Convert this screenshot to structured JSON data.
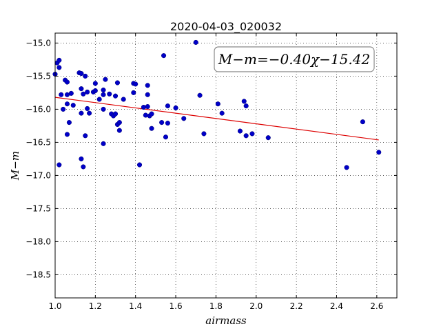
{
  "chart_data": {
    "type": "scatter",
    "title": "2020-04-03_020032",
    "xlabel": "airmass",
    "ylabel": "M−m",
    "xlim": [
      1.0,
      2.7
    ],
    "ylim": [
      -18.85,
      -14.85
    ],
    "y_inverted": true,
    "grid": true,
    "x_ticks": [
      "1.0",
      "1.2",
      "1.4",
      "1.6",
      "1.8",
      "2.0",
      "2.2",
      "2.4",
      "2.6"
    ],
    "y_ticks": [
      "−15.0",
      "−15.5",
      "−16.0",
      "−16.5",
      "−17.0",
      "−17.5",
      "−18.0",
      "−18.5"
    ],
    "x_tick_values": [
      1.0,
      1.2,
      1.4,
      1.6,
      1.8,
      2.0,
      2.2,
      2.4,
      2.6
    ],
    "y_tick_values": [
      -15.0,
      -15.5,
      -16.0,
      -16.5,
      -17.0,
      -17.5,
      -18.0,
      -18.5
    ],
    "annotation": "M−m=−0.40χ−15.42",
    "colors": {
      "points": "#0000c8",
      "fit": "#dd0000"
    },
    "fit": {
      "slope": -0.4,
      "intercept": -15.42,
      "x_range": [
        1.0,
        2.61
      ]
    },
    "points": [
      {
        "x": 1.0,
        "y": -15.47
      },
      {
        "x": 1.01,
        "y": -15.3
      },
      {
        "x": 1.02,
        "y": -15.26
      },
      {
        "x": 1.02,
        "y": -15.37
      },
      {
        "x": 1.02,
        "y": -16.84
      },
      {
        "x": 1.03,
        "y": -15.78
      },
      {
        "x": 1.04,
        "y": -16.0
      },
      {
        "x": 1.05,
        "y": -15.56
      },
      {
        "x": 1.06,
        "y": -15.59
      },
      {
        "x": 1.06,
        "y": -15.78
      },
      {
        "x": 1.06,
        "y": -15.92
      },
      {
        "x": 1.06,
        "y": -16.38
      },
      {
        "x": 1.07,
        "y": -16.2
      },
      {
        "x": 1.08,
        "y": -15.76
      },
      {
        "x": 1.09,
        "y": -15.94
      },
      {
        "x": 1.12,
        "y": -15.45
      },
      {
        "x": 1.13,
        "y": -15.46
      },
      {
        "x": 1.13,
        "y": -15.69
      },
      {
        "x": 1.13,
        "y": -16.06
      },
      {
        "x": 1.13,
        "y": -16.75
      },
      {
        "x": 1.14,
        "y": -15.77
      },
      {
        "x": 1.14,
        "y": -16.87
      },
      {
        "x": 1.15,
        "y": -15.5
      },
      {
        "x": 1.15,
        "y": -16.4
      },
      {
        "x": 1.16,
        "y": -15.74
      },
      {
        "x": 1.16,
        "y": -15.99
      },
      {
        "x": 1.17,
        "y": -16.06
      },
      {
        "x": 1.19,
        "y": -15.74
      },
      {
        "x": 1.2,
        "y": -15.61
      },
      {
        "x": 1.2,
        "y": -15.72
      },
      {
        "x": 1.22,
        "y": -15.85
      },
      {
        "x": 1.24,
        "y": -15.71
      },
      {
        "x": 1.24,
        "y": -15.78
      },
      {
        "x": 1.24,
        "y": -16.0
      },
      {
        "x": 1.24,
        "y": -16.52
      },
      {
        "x": 1.25,
        "y": -15.55
      },
      {
        "x": 1.27,
        "y": -15.77
      },
      {
        "x": 1.28,
        "y": -16.07
      },
      {
        "x": 1.29,
        "y": -16.1
      },
      {
        "x": 1.3,
        "y": -15.8
      },
      {
        "x": 1.3,
        "y": -16.07
      },
      {
        "x": 1.31,
        "y": -15.6
      },
      {
        "x": 1.31,
        "y": -16.23
      },
      {
        "x": 1.32,
        "y": -16.2
      },
      {
        "x": 1.32,
        "y": -16.32
      },
      {
        "x": 1.34,
        "y": -15.85
      },
      {
        "x": 1.39,
        "y": -15.75
      },
      {
        "x": 1.39,
        "y": -15.61
      },
      {
        "x": 1.4,
        "y": -15.62
      },
      {
        "x": 1.42,
        "y": -16.84
      },
      {
        "x": 1.44,
        "y": -15.97
      },
      {
        "x": 1.45,
        "y": -16.09
      },
      {
        "x": 1.46,
        "y": -15.64
      },
      {
        "x": 1.46,
        "y": -15.78
      },
      {
        "x": 1.46,
        "y": -15.96
      },
      {
        "x": 1.47,
        "y": -16.1
      },
      {
        "x": 1.48,
        "y": -16.07
      },
      {
        "x": 1.48,
        "y": -16.29
      },
      {
        "x": 1.53,
        "y": -16.2
      },
      {
        "x": 1.54,
        "y": -15.19
      },
      {
        "x": 1.55,
        "y": -16.42
      },
      {
        "x": 1.56,
        "y": -15.95
      },
      {
        "x": 1.56,
        "y": -16.21
      },
      {
        "x": 1.6,
        "y": -15.98
      },
      {
        "x": 1.64,
        "y": -16.14
      },
      {
        "x": 1.7,
        "y": -14.99
      },
      {
        "x": 1.72,
        "y": -15.79
      },
      {
        "x": 1.74,
        "y": -16.37
      },
      {
        "x": 1.81,
        "y": -15.92
      },
      {
        "x": 1.83,
        "y": -16.06
      },
      {
        "x": 1.92,
        "y": -16.33
      },
      {
        "x": 1.94,
        "y": -15.88
      },
      {
        "x": 1.95,
        "y": -15.95
      },
      {
        "x": 1.95,
        "y": -16.4
      },
      {
        "x": 1.98,
        "y": -16.37
      },
      {
        "x": 2.06,
        "y": -16.43
      },
      {
        "x": 2.45,
        "y": -16.88
      },
      {
        "x": 2.53,
        "y": -16.19
      },
      {
        "x": 2.61,
        "y": -16.65
      }
    ]
  }
}
